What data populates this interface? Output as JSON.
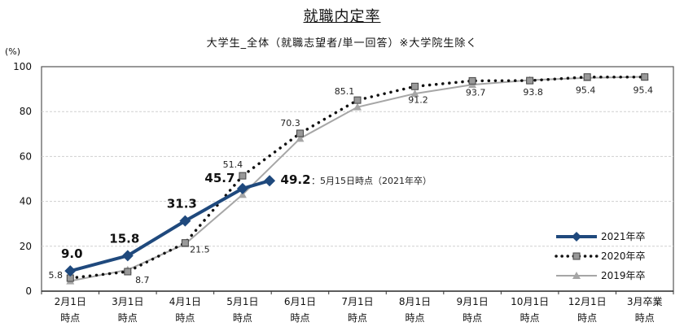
{
  "chart_data": {
    "type": "line",
    "title": "就職内定率",
    "subtitle": "大学生_全体（就職志望者/単一回答）※大学院生除く",
    "ylabel": "(%)",
    "xlabel": "",
    "ylim": [
      0,
      100
    ],
    "yticks": [
      0,
      20,
      40,
      60,
      80,
      100
    ],
    "grid": true,
    "legend_position": "lower right",
    "categories": [
      [
        "2月1日",
        "時点"
      ],
      [
        "3月1日",
        "時点"
      ],
      [
        "4月1日",
        "時点"
      ],
      [
        "5月1日",
        "時点"
      ],
      [
        "6月1日",
        "時点"
      ],
      [
        "7月1日",
        "時点"
      ],
      [
        "8月1日",
        "時点"
      ],
      [
        "9月1日",
        "時点"
      ],
      [
        "10月1日",
        "時点"
      ],
      [
        "12月1日",
        "時点"
      ],
      [
        "3月卒業",
        "時点"
      ]
    ],
    "series": [
      {
        "name": "2021年卒",
        "color": "#1f497d",
        "style": "solid-thick-diamond",
        "points": [
          {
            "x": 0,
            "y": 9.0,
            "label": "9.0"
          },
          {
            "x": 1,
            "y": 15.8,
            "label": "15.8"
          },
          {
            "x": 2,
            "y": 31.3,
            "label": "31.3"
          },
          {
            "x": 3,
            "y": 45.7,
            "label": "45.7"
          },
          {
            "x": 3.47,
            "y": 49.2,
            "label": "49.2"
          }
        ]
      },
      {
        "name": "2020年卒",
        "color": "#111111",
        "style": "dotted-square",
        "values": [
          5.8,
          8.7,
          21.5,
          51.4,
          70.3,
          85.1,
          91.2,
          93.7,
          93.8,
          95.4,
          95.4
        ],
        "labels": [
          "5.8",
          "8.7",
          "21.5",
          "51.4",
          "70.3",
          "85.1",
          "91.2",
          "93.7",
          "93.8",
          "95.4",
          "95.4"
        ]
      },
      {
        "name": "2019年卒",
        "color": "#a6a6a6",
        "style": "solid-thin-triangle",
        "values": [
          4.5,
          9.5,
          21.0,
          43.0,
          68.0,
          82.0,
          88.0,
          92.0,
          94.0,
          95.0,
          95.5
        ]
      }
    ],
    "annotations": [
      {
        "text": "：5月15日時点（2021年卒）",
        "near": "49.2"
      }
    ]
  }
}
